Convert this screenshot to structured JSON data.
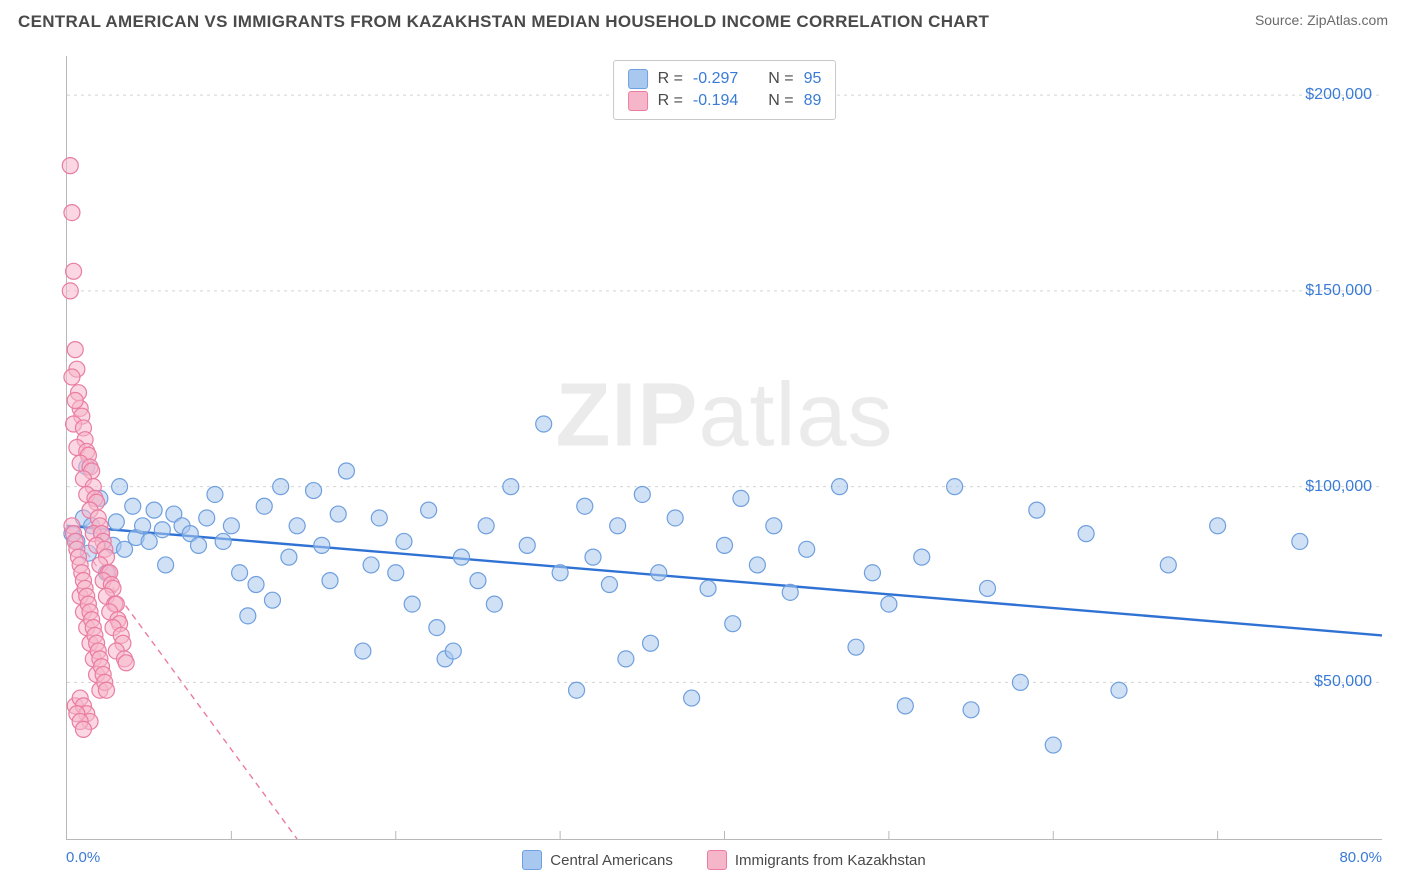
{
  "header": {
    "title": "CENTRAL AMERICAN VS IMMIGRANTS FROM KAZAKHSTAN MEDIAN HOUSEHOLD INCOME CORRELATION CHART",
    "source_prefix": "Source: ",
    "source_link": "ZipAtlas.com"
  },
  "chart": {
    "type": "scatter",
    "ylabel": "Median Household Income",
    "watermark_a": "ZIP",
    "watermark_b": "atlas",
    "xlim": [
      0,
      80
    ],
    "ylim": [
      10000,
      210000
    ],
    "xticks": [
      {
        "v": 0,
        "label": "0.0%"
      },
      {
        "v": 80,
        "label": "80.0%"
      }
    ],
    "xminor_ticks": [
      10,
      20,
      30,
      40,
      50,
      60,
      70
    ],
    "yticks": [
      {
        "v": 50000,
        "label": "$50,000"
      },
      {
        "v": 100000,
        "label": "$100,000"
      },
      {
        "v": 150000,
        "label": "$150,000"
      },
      {
        "v": 200000,
        "label": "$200,000"
      }
    ],
    "grid_color": "#d4d4d4",
    "grid_dash": "3,4",
    "background_color": "#ffffff",
    "marker_radius": 8,
    "marker_stroke_width": 1.2,
    "series": [
      {
        "key": "central_americans",
        "label": "Central Americans",
        "fill": "#a9c8ef",
        "stroke": "#6f9fde",
        "fill_opacity": 0.55,
        "trend": {
          "x1": 0,
          "y1": 90000,
          "x2": 80,
          "y2": 62000,
          "color": "#2f72d4",
          "width": 2.4,
          "dash": null
        },
        "R_label": "R = ",
        "R_value": "-0.297",
        "N_label": "N = ",
        "N_value": "95",
        "points": [
          [
            0.3,
            88000
          ],
          [
            0.6,
            86000
          ],
          [
            1.0,
            92000
          ],
          [
            1.2,
            105000
          ],
          [
            1.3,
            83000
          ],
          [
            1.5,
            90000
          ],
          [
            2.0,
            97000
          ],
          [
            2.1,
            88000
          ],
          [
            2.4,
            78000
          ],
          [
            2.8,
            85000
          ],
          [
            3.0,
            91000
          ],
          [
            3.2,
            100000
          ],
          [
            3.5,
            84000
          ],
          [
            4.0,
            95000
          ],
          [
            4.2,
            87000
          ],
          [
            4.6,
            90000
          ],
          [
            5.0,
            86000
          ],
          [
            5.3,
            94000
          ],
          [
            5.8,
            89000
          ],
          [
            6.0,
            80000
          ],
          [
            6.5,
            93000
          ],
          [
            7.0,
            90000
          ],
          [
            7.5,
            88000
          ],
          [
            8.0,
            85000
          ],
          [
            8.5,
            92000
          ],
          [
            9.0,
            98000
          ],
          [
            9.5,
            86000
          ],
          [
            10.0,
            90000
          ],
          [
            10.5,
            78000
          ],
          [
            11.0,
            67000
          ],
          [
            11.5,
            75000
          ],
          [
            12.0,
            95000
          ],
          [
            12.5,
            71000
          ],
          [
            13.0,
            100000
          ],
          [
            13.5,
            82000
          ],
          [
            14.0,
            90000
          ],
          [
            15.0,
            99000
          ],
          [
            15.5,
            85000
          ],
          [
            16.0,
            76000
          ],
          [
            16.5,
            93000
          ],
          [
            17.0,
            104000
          ],
          [
            18.0,
            58000
          ],
          [
            18.5,
            80000
          ],
          [
            19.0,
            92000
          ],
          [
            20.0,
            78000
          ],
          [
            20.5,
            86000
          ],
          [
            21.0,
            70000
          ],
          [
            22.0,
            94000
          ],
          [
            22.5,
            64000
          ],
          [
            23.0,
            56000
          ],
          [
            23.5,
            58000
          ],
          [
            24.0,
            82000
          ],
          [
            25.0,
            76000
          ],
          [
            25.5,
            90000
          ],
          [
            26.0,
            70000
          ],
          [
            27.0,
            100000
          ],
          [
            28.0,
            85000
          ],
          [
            29.0,
            116000
          ],
          [
            30.0,
            78000
          ],
          [
            31.0,
            48000
          ],
          [
            31.5,
            95000
          ],
          [
            32.0,
            82000
          ],
          [
            33.0,
            75000
          ],
          [
            33.5,
            90000
          ],
          [
            34.0,
            56000
          ],
          [
            35.0,
            98000
          ],
          [
            35.5,
            60000
          ],
          [
            36.0,
            78000
          ],
          [
            37.0,
            92000
          ],
          [
            38.0,
            46000
          ],
          [
            39.0,
            74000
          ],
          [
            40.0,
            85000
          ],
          [
            40.5,
            65000
          ],
          [
            41.0,
            97000
          ],
          [
            42.0,
            80000
          ],
          [
            43.0,
            90000
          ],
          [
            44.0,
            73000
          ],
          [
            45.0,
            84000
          ],
          [
            47.0,
            100000
          ],
          [
            48.0,
            59000
          ],
          [
            49.0,
            78000
          ],
          [
            50.0,
            70000
          ],
          [
            51.0,
            44000
          ],
          [
            52.0,
            82000
          ],
          [
            54.0,
            100000
          ],
          [
            55.0,
            43000
          ],
          [
            56.0,
            74000
          ],
          [
            58.0,
            50000
          ],
          [
            59.0,
            94000
          ],
          [
            60.0,
            34000
          ],
          [
            62.0,
            88000
          ],
          [
            64.0,
            48000
          ],
          [
            67.0,
            80000
          ],
          [
            70.0,
            90000
          ],
          [
            75.0,
            86000
          ]
        ]
      },
      {
        "key": "kazakhstan",
        "label": "Immigrants from Kazakhstan",
        "fill": "#f6b6ca",
        "stroke": "#ea7ca1",
        "fill_opacity": 0.55,
        "trend": {
          "x1": 0,
          "y1": 90000,
          "x2": 14,
          "y2": 10000,
          "color": "#ea7ca1",
          "width": 1.4,
          "dash": "6,5"
        },
        "R_label": "R = ",
        "R_value": "-0.194",
        "N_label": "N = ",
        "N_value": "89",
        "points": [
          [
            0.2,
            182000
          ],
          [
            0.3,
            170000
          ],
          [
            0.4,
            155000
          ],
          [
            0.2,
            150000
          ],
          [
            0.5,
            135000
          ],
          [
            0.6,
            130000
          ],
          [
            0.3,
            128000
          ],
          [
            0.7,
            124000
          ],
          [
            0.8,
            120000
          ],
          [
            0.5,
            122000
          ],
          [
            0.9,
            118000
          ],
          [
            0.4,
            116000
          ],
          [
            1.0,
            115000
          ],
          [
            1.1,
            112000
          ],
          [
            0.6,
            110000
          ],
          [
            1.2,
            109000
          ],
          [
            1.3,
            108000
          ],
          [
            0.8,
            106000
          ],
          [
            1.4,
            105000
          ],
          [
            1.5,
            104000
          ],
          [
            1.0,
            102000
          ],
          [
            1.6,
            100000
          ],
          [
            1.2,
            98000
          ],
          [
            1.7,
            97000
          ],
          [
            1.8,
            96000
          ],
          [
            1.4,
            94000
          ],
          [
            1.9,
            92000
          ],
          [
            2.0,
            90000
          ],
          [
            1.6,
            88000
          ],
          [
            2.1,
            88000
          ],
          [
            2.2,
            86000
          ],
          [
            1.8,
            85000
          ],
          [
            2.3,
            84000
          ],
          [
            2.4,
            82000
          ],
          [
            2.0,
            80000
          ],
          [
            2.5,
            78000
          ],
          [
            2.6,
            78000
          ],
          [
            2.2,
            76000
          ],
          [
            2.7,
            75000
          ],
          [
            2.8,
            74000
          ],
          [
            2.4,
            72000
          ],
          [
            2.9,
            70000
          ],
          [
            3.0,
            70000
          ],
          [
            2.6,
            68000
          ],
          [
            3.1,
            66000
          ],
          [
            3.2,
            65000
          ],
          [
            2.8,
            64000
          ],
          [
            3.3,
            62000
          ],
          [
            3.4,
            60000
          ],
          [
            3.0,
            58000
          ],
          [
            3.5,
            56000
          ],
          [
            3.6,
            55000
          ],
          [
            0.8,
            72000
          ],
          [
            1.0,
            68000
          ],
          [
            1.2,
            64000
          ],
          [
            1.4,
            60000
          ],
          [
            1.6,
            56000
          ],
          [
            1.8,
            52000
          ],
          [
            2.0,
            48000
          ],
          [
            0.5,
            44000
          ],
          [
            0.8,
            46000
          ],
          [
            1.0,
            44000
          ],
          [
            1.2,
            42000
          ],
          [
            1.4,
            40000
          ],
          [
            0.6,
            42000
          ],
          [
            0.8,
            40000
          ],
          [
            1.0,
            38000
          ],
          [
            0.3,
            90000
          ],
          [
            0.4,
            88000
          ],
          [
            0.5,
            86000
          ],
          [
            0.6,
            84000
          ],
          [
            0.7,
            82000
          ],
          [
            0.8,
            80000
          ],
          [
            0.9,
            78000
          ],
          [
            1.0,
            76000
          ],
          [
            1.1,
            74000
          ],
          [
            1.2,
            72000
          ],
          [
            1.3,
            70000
          ],
          [
            1.4,
            68000
          ],
          [
            1.5,
            66000
          ],
          [
            1.6,
            64000
          ],
          [
            1.7,
            62000
          ],
          [
            1.8,
            60000
          ],
          [
            1.9,
            58000
          ],
          [
            2.0,
            56000
          ],
          [
            2.1,
            54000
          ],
          [
            2.2,
            52000
          ],
          [
            2.3,
            50000
          ],
          [
            2.4,
            48000
          ]
        ]
      }
    ]
  }
}
